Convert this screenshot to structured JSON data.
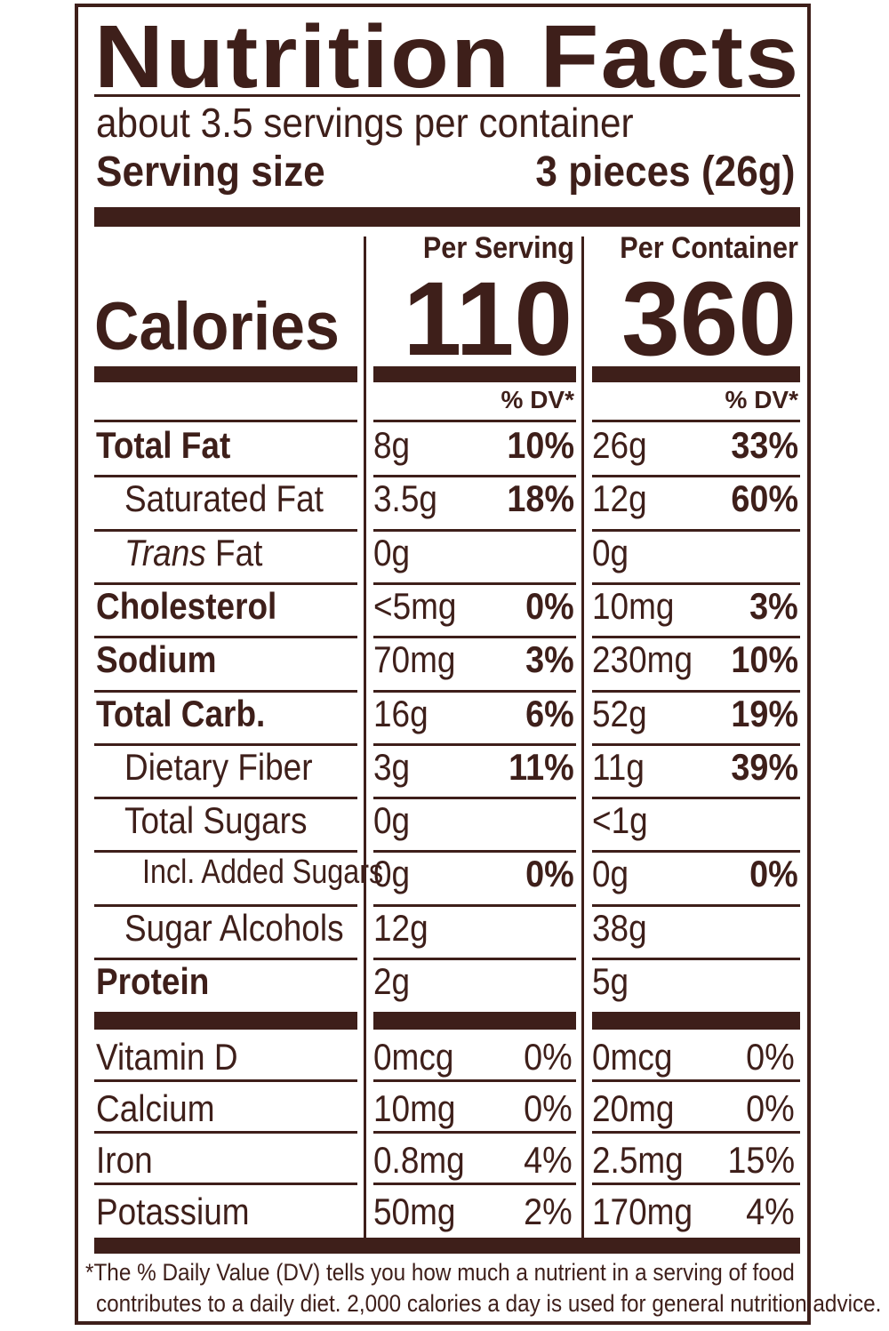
{
  "label": {
    "title": "Nutrition Facts",
    "servings_per_container": "about 3.5 servings per container",
    "serving_size_label": "Serving size",
    "serving_size_value": "3 pieces (26g)",
    "col_per_serving": "Per Serving",
    "col_per_container": "Per Container",
    "calories_label": "Calories",
    "calories_per_serving": "110",
    "calories_per_container": "360",
    "dv_header": "% DV*"
  },
  "nutrients": [
    {
      "label": "Total Fat",
      "bold": true,
      "indent": 0,
      "serv_amt": "8g",
      "serv_dv": "10%",
      "cont_amt": "26g",
      "cont_dv": "33%"
    },
    {
      "label": "Saturated Fat",
      "bold": false,
      "indent": 1,
      "serv_amt": "3.5g",
      "serv_dv": "18%",
      "cont_amt": "12g",
      "cont_dv": "60%"
    },
    {
      "label_italic": "Trans",
      "label": " Fat",
      "bold": false,
      "indent": 1,
      "serv_amt": "0g",
      "serv_dv": "",
      "cont_amt": "0g",
      "cont_dv": ""
    },
    {
      "label": "Cholesterol",
      "bold": true,
      "indent": 0,
      "serv_amt": "<5mg",
      "serv_dv": "0%",
      "cont_amt": "10mg",
      "cont_dv": "3%"
    },
    {
      "label": "Sodium",
      "bold": true,
      "indent": 0,
      "serv_amt": "70mg",
      "serv_dv": "3%",
      "cont_amt": "230mg",
      "cont_dv": "10%"
    },
    {
      "label": "Total Carb.",
      "bold": true,
      "indent": 0,
      "serv_amt": "16g",
      "serv_dv": "6%",
      "cont_amt": "52g",
      "cont_dv": "19%"
    },
    {
      "label": "Dietary Fiber",
      "bold": false,
      "indent": 1,
      "serv_amt": "3g",
      "serv_dv": "11%",
      "cont_amt": "11g",
      "cont_dv": "39%"
    },
    {
      "label": "Total Sugars",
      "bold": false,
      "indent": 1,
      "serv_amt": "0g",
      "serv_dv": "",
      "cont_amt": "<1g",
      "cont_dv": ""
    },
    {
      "label": "Incl. Added Sugars",
      "bold": false,
      "indent": 2,
      "serv_amt": "0g",
      "serv_dv": "0%",
      "cont_amt": "0g",
      "cont_dv": "0%"
    },
    {
      "label": "Sugar Alcohols",
      "bold": false,
      "indent": 1,
      "serv_amt": "12g",
      "serv_dv": "",
      "cont_amt": "38g",
      "cont_dv": ""
    },
    {
      "label": "Protein",
      "bold": true,
      "indent": 0,
      "serv_amt": "2g",
      "serv_dv": "",
      "cont_amt": "5g",
      "cont_dv": ""
    }
  ],
  "vitamins": [
    {
      "label": "Vitamin D",
      "serv_amt": "0mcg",
      "serv_dv": "0%",
      "cont_amt": "0mcg",
      "cont_dv": "0%"
    },
    {
      "label": "Calcium",
      "serv_amt": "10mg",
      "serv_dv": "0%",
      "cont_amt": "20mg",
      "cont_dv": "0%"
    },
    {
      "label": "Iron",
      "serv_amt": "0.8mg",
      "serv_dv": "4%",
      "cont_amt": "2.5mg",
      "cont_dv": "15%"
    },
    {
      "label": "Potassium",
      "serv_amt": "50mg",
      "serv_dv": "2%",
      "cont_amt": "170mg",
      "cont_dv": "4%"
    }
  ],
  "footnote": {
    "line1": "*The % Daily Value (DV) tells you how much a nutrient in a serving of food",
    "line2": "contributes to a daily diet. 2,000 calories a day is used for general nutrition advice."
  },
  "colors": {
    "ink": "#3e1f1a",
    "background": "#ffffff"
  }
}
